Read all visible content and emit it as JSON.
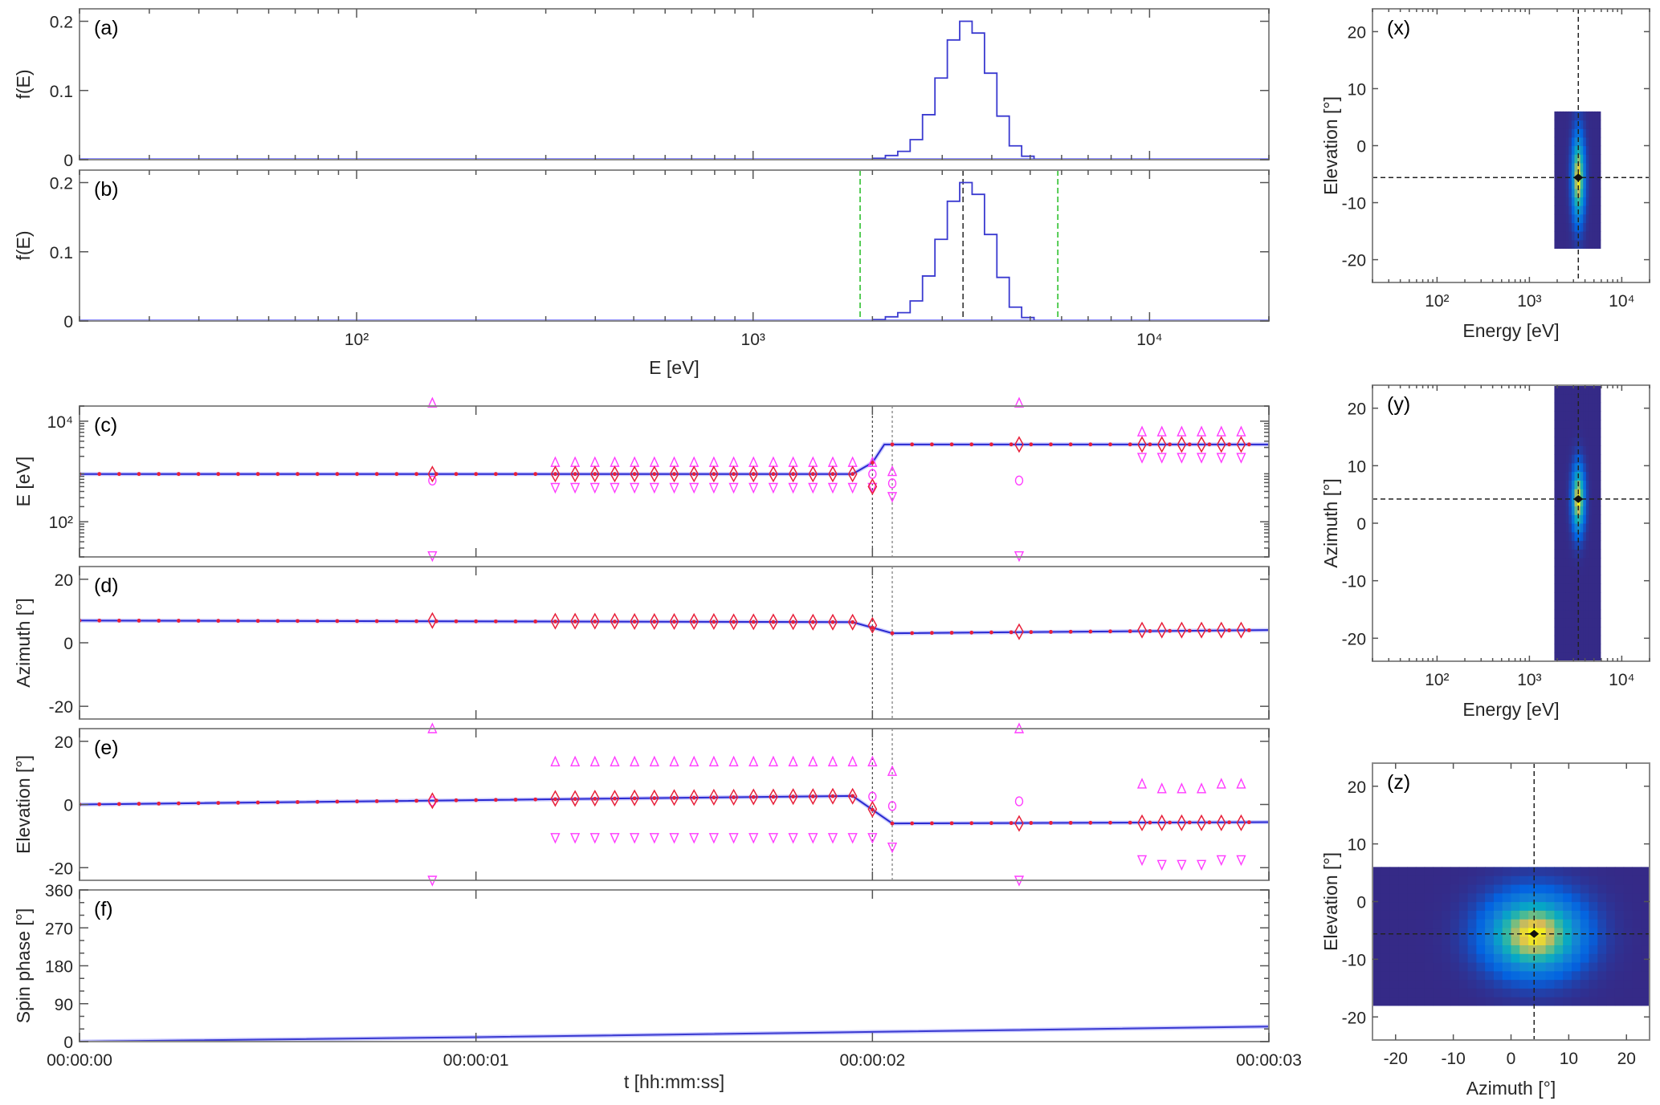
{
  "chart_data": [
    {
      "type": "line",
      "panel_label": "(a)",
      "ylabel": "f(E)",
      "xlabel": "",
      "xscale": "log",
      "xlim": [
        20,
        20000
      ],
      "ylim": [
        0,
        0.218
      ],
      "xticks": [
        100,
        1000,
        10000
      ],
      "xticklabels": [],
      "yticks": [
        0,
        0.1,
        0.2
      ],
      "yticklabels": [
        "0",
        "0.1",
        "0.2"
      ],
      "histogram": {
        "bin_centers_eV": [
          2080,
          2235,
          2402,
          2581,
          2774,
          2981,
          3203,
          3442,
          3699,
          3975,
          4271,
          4590,
          4932
        ],
        "values": [
          0.002,
          0.006,
          0.012,
          0.029,
          0.065,
          0.118,
          0.173,
          0.2,
          0.183,
          0.125,
          0.063,
          0.02,
          0.005
        ],
        "color": "#3a3ad0"
      }
    },
    {
      "type": "line",
      "panel_label": "(b)",
      "ylabel": "f(E)",
      "xlabel": "E [eV]",
      "xscale": "log",
      "xlim": [
        20,
        20000
      ],
      "ylim": [
        0,
        0.218
      ],
      "xticks": [
        100,
        1000,
        10000
      ],
      "xticklabels": [
        "10²",
        "10³",
        "10⁴"
      ],
      "yticks": [
        0,
        0.1,
        0.2
      ],
      "yticklabels": [
        "0",
        "0.1",
        "0.2"
      ],
      "histogram": {
        "bin_centers_eV": [
          2080,
          2235,
          2402,
          2581,
          2774,
          2981,
          3203,
          3442,
          3699,
          3975,
          4271,
          4590,
          4932
        ],
        "values": [
          0.002,
          0.006,
          0.012,
          0.029,
          0.065,
          0.118,
          0.173,
          0.2,
          0.183,
          0.125,
          0.063,
          0.02,
          0.005
        ],
        "color": "#3a3ad0"
      },
      "vlines": [
        {
          "x": 1862,
          "color": "#2ec02e"
        },
        {
          "x": 5870,
          "color": "#2ec02e"
        },
        {
          "x": 3385,
          "color": "#333333"
        }
      ]
    },
    {
      "type": "scatter",
      "panel_label": "(c)",
      "ylabel": "E [eV]",
      "xlabel": "",
      "xlim": [
        0,
        3
      ],
      "yscale": "log",
      "ylim": [
        20,
        20000
      ],
      "xticks": [
        0,
        1,
        2,
        3
      ],
      "xticklabels": [],
      "yticks": [
        100,
        10000
      ],
      "yticklabels": [
        "10²",
        "10⁴"
      ],
      "vlines_t": [
        2.0,
        2.05
      ],
      "line": {
        "t": [
          0,
          1.95,
          2.0,
          2.03,
          3
        ],
        "v": [
          890,
          890,
          1500,
          3450,
          3450
        ],
        "color": "#2a2ad0",
        "dot_color": "#e8203a",
        "dot_interval_s": 0.05
      },
      "markers": [
        {
          "shape": "triangle-up",
          "color": "#ff3cff",
          "t": [
            0.89,
            1.2,
            1.25,
            1.3,
            1.35,
            1.4,
            1.45,
            1.5,
            1.55,
            1.6,
            1.65,
            1.7,
            1.75,
            1.8,
            1.85,
            1.9,
            1.95,
            2.0,
            2.05,
            2.37,
            2.68,
            2.73,
            2.78,
            2.83,
            2.88,
            2.93
          ],
          "v": [
            23000,
            1520,
            1520,
            1520,
            1520,
            1520,
            1520,
            1520,
            1520,
            1520,
            1520,
            1520,
            1520,
            1520,
            1520,
            1520,
            1520,
            1520,
            1000,
            23000,
            6150,
            6150,
            6150,
            6150,
            6150,
            6150
          ]
        },
        {
          "shape": "triangle-down",
          "color": "#ff3cff",
          "t": [
            0.89,
            1.2,
            1.25,
            1.3,
            1.35,
            1.4,
            1.45,
            1.5,
            1.55,
            1.6,
            1.65,
            1.7,
            1.75,
            1.8,
            1.85,
            1.9,
            1.95,
            2.0,
            2.05,
            2.37,
            2.68,
            2.73,
            2.78,
            2.83,
            2.88,
            2.93
          ],
          "v": [
            21,
            480,
            480,
            480,
            480,
            480,
            480,
            480,
            480,
            480,
            480,
            480,
            480,
            480,
            480,
            480,
            480,
            480,
            316,
            21,
            1900,
            1900,
            1900,
            1900,
            1900,
            1900
          ]
        },
        {
          "shape": "circle",
          "color": "#ff3cff",
          "t": [
            0.89,
            2.0,
            2.05,
            2.37
          ],
          "v": [
            660,
            890,
            580,
            660
          ]
        },
        {
          "shape": "diamond",
          "color": "#e8203a",
          "t": [
            0.89,
            1.2,
            1.25,
            1.3,
            1.35,
            1.4,
            1.45,
            1.5,
            1.55,
            1.6,
            1.65,
            1.7,
            1.75,
            1.8,
            1.85,
            1.9,
            1.95,
            2.0,
            2.37,
            2.68,
            2.73,
            2.78,
            2.83,
            2.88,
            2.93
          ],
          "v": [
            890,
            890,
            890,
            890,
            890,
            890,
            890,
            890,
            890,
            890,
            890,
            890,
            890,
            890,
            890,
            890,
            890,
            500,
            3450,
            3450,
            3450,
            3450,
            3450,
            3450,
            3450
          ]
        }
      ]
    },
    {
      "type": "scatter",
      "panel_label": "(d)",
      "ylabel": "Azimuth [°]",
      "xlabel": "",
      "xlim": [
        0,
        3
      ],
      "ylim": [
        -24,
        24
      ],
      "xticks": [
        0,
        1,
        2,
        3
      ],
      "xticklabels": [],
      "yticks": [
        -20,
        0,
        20
      ],
      "yticklabels": [
        "-20",
        "0",
        "20"
      ],
      "vlines_t": [
        2.0,
        2.05
      ],
      "line": {
        "t": [
          0,
          1.95,
          2.05,
          3
        ],
        "v": [
          7,
          6.5,
          3,
          4
        ],
        "color": "#2a2ad0",
        "dot_color": "#e8203a",
        "dot_interval_s": 0.05
      },
      "markers": [
        {
          "shape": "diamond",
          "color": "#e8203a",
          "t": [
            0.89,
            1.2,
            1.25,
            1.3,
            1.35,
            1.4,
            1.45,
            1.5,
            1.55,
            1.6,
            1.65,
            1.7,
            1.75,
            1.8,
            1.85,
            1.9,
            1.95,
            2.0,
            2.37,
            2.68,
            2.73,
            2.78,
            2.83,
            2.88,
            2.93
          ],
          "v": [
            7,
            6.8,
            6.8,
            6.8,
            6.8,
            6.7,
            6.7,
            6.7,
            6.7,
            6.7,
            6.6,
            6.6,
            6.6,
            6.6,
            6.5,
            6.5,
            6.5,
            5.5,
            3.5,
            4,
            4,
            4,
            4,
            4,
            4
          ]
        }
      ]
    },
    {
      "type": "scatter",
      "panel_label": "(e)",
      "ylabel": "Elevation [°]",
      "xlabel": "",
      "xlim": [
        0,
        3
      ],
      "ylim": [
        -24,
        24
      ],
      "xticks": [
        0,
        1,
        2,
        3
      ],
      "xticklabels": [],
      "yticks": [
        -20,
        0,
        20
      ],
      "yticklabels": [
        "-20",
        "0",
        "20"
      ],
      "vlines_t": [
        2.0,
        2.05
      ],
      "line": {
        "t": [
          0,
          1.95,
          2.05,
          3
        ],
        "v": [
          0,
          2.7,
          -6,
          -5.6
        ],
        "color": "#2a2ad0",
        "dot_color": "#e8203a",
        "dot_interval_s": 0.05
      },
      "markers": [
        {
          "shape": "triangle-up",
          "color": "#ff3cff",
          "t": [
            0.89,
            1.2,
            1.25,
            1.3,
            1.35,
            1.4,
            1.45,
            1.5,
            1.55,
            1.6,
            1.65,
            1.7,
            1.75,
            1.8,
            1.85,
            1.9,
            1.95,
            2.0,
            2.05,
            2.37,
            2.68,
            2.73,
            2.78,
            2.83,
            2.88,
            2.93
          ],
          "v": [
            24,
            13.5,
            13.5,
            13.5,
            13.5,
            13.5,
            13.5,
            13.5,
            13.5,
            13.5,
            13.5,
            13.5,
            13.5,
            13.5,
            13.5,
            13.5,
            13.5,
            13.5,
            10.5,
            24,
            6.5,
            5,
            5,
            5,
            6.5,
            6.5
          ]
        },
        {
          "shape": "triangle-down",
          "color": "#ff3cff",
          "t": [
            0.89,
            1.2,
            1.25,
            1.3,
            1.35,
            1.4,
            1.45,
            1.5,
            1.55,
            1.6,
            1.65,
            1.7,
            1.75,
            1.8,
            1.85,
            1.9,
            1.95,
            2.0,
            2.05,
            2.37,
            2.68,
            2.73,
            2.78,
            2.83,
            2.88,
            2.93
          ],
          "v": [
            -24,
            -10.5,
            -10.5,
            -10.5,
            -10.5,
            -10.5,
            -10.5,
            -10.5,
            -10.5,
            -10.5,
            -10.5,
            -10.5,
            -10.5,
            -10.5,
            -10.5,
            -10.5,
            -10.5,
            -10.5,
            -13.5,
            -24,
            -17.5,
            -19,
            -19,
            -19,
            -17.5,
            -17.5
          ]
        },
        {
          "shape": "circle",
          "color": "#ff3cff",
          "t": [
            0.89,
            2.0,
            2.05,
            2.37
          ],
          "v": [
            1,
            2.5,
            -0.5,
            1
          ]
        },
        {
          "shape": "diamond",
          "color": "#e8203a",
          "t": [
            0.89,
            1.2,
            1.25,
            1.3,
            1.35,
            1.4,
            1.45,
            1.5,
            1.55,
            1.6,
            1.65,
            1.7,
            1.75,
            1.8,
            1.85,
            1.9,
            1.95,
            2.0,
            2.37,
            2.68,
            2.73,
            2.78,
            2.83,
            2.88,
            2.93
          ],
          "v": [
            1.2,
            1.9,
            1.9,
            2.0,
            2.0,
            2.1,
            2.1,
            2.2,
            2.2,
            2.3,
            2.3,
            2.4,
            2.4,
            2.5,
            2.5,
            2.6,
            2.6,
            -1.5,
            -6,
            -5.8,
            -5.8,
            -5.8,
            -5.8,
            -5.8,
            -5.8
          ]
        }
      ]
    },
    {
      "type": "line",
      "panel_label": "(f)",
      "ylabel": "Spin phase [°]",
      "xlabel": "t [hh:mm:ss]",
      "xlim": [
        0,
        3
      ],
      "ylim": [
        0,
        360
      ],
      "xticks": [
        0,
        1,
        2,
        3
      ],
      "xticklabels": [
        "00:00:00",
        "00:00:01",
        "00:00:02",
        "00:00:03"
      ],
      "yticks": [
        0,
        90,
        180,
        270,
        360
      ],
      "yticklabels": [
        "0",
        "90",
        "180",
        "270",
        "360"
      ],
      "line": {
        "t": [
          0,
          1,
          2,
          3
        ],
        "v": [
          0,
          10.5,
          23,
          35.6
        ],
        "color": "#3a3ad0"
      }
    },
    {
      "type": "heatmap",
      "panel_label": "(x)",
      "ylabel": "Elevation [°]",
      "xlabel": "Energy [eV]",
      "xscale": "log",
      "xlim": [
        20,
        20000
      ],
      "ylim": [
        -24,
        24
      ],
      "xticks": [
        100,
        1000,
        10000
      ],
      "xticklabels": [
        "10²",
        "10³",
        "10⁴"
      ],
      "yticks": [
        -20,
        -10,
        0,
        10,
        20
      ],
      "yticklabels": [
        "-20",
        "-10",
        "0",
        "10",
        "20"
      ],
      "extent": {
        "x": [
          1862,
          5870
        ],
        "y": [
          -18,
          6
        ]
      },
      "peak": {
        "x": 3385,
        "y": -5.6
      },
      "spread": {
        "x_decades": 0.045,
        "y": 5
      },
      "crosshair": {
        "x": 3385,
        "y": -5.6
      }
    },
    {
      "type": "heatmap",
      "panel_label": "(y)",
      "ylabel": "Azimuth [°]",
      "xlabel": "Energy [eV]",
      "xscale": "log",
      "xlim": [
        20,
        20000
      ],
      "ylim": [
        -24,
        24
      ],
      "xticks": [
        100,
        1000,
        10000
      ],
      "xticklabels": [
        "10²",
        "10³",
        "10⁴"
      ],
      "yticks": [
        -20,
        -10,
        0,
        10,
        20
      ],
      "yticklabels": [
        "-20",
        "-10",
        "0",
        "10",
        "20"
      ],
      "extent": {
        "x": [
          1862,
          5870
        ],
        "y": [
          -24,
          24
        ]
      },
      "peak": {
        "x": 3385,
        "y": 4.2
      },
      "spread": {
        "x_decades": 0.045,
        "y": 3.8
      },
      "crosshair": {
        "x": 3385,
        "y": 4.2
      }
    },
    {
      "type": "heatmap",
      "panel_label": "(z)",
      "ylabel": "Elevation [°]",
      "xlabel": "Azimuth [°]",
      "xlim": [
        -24,
        24
      ],
      "ylim": [
        -24,
        24
      ],
      "xticks": [
        -20,
        -10,
        0,
        10,
        20
      ],
      "xticklabels": [
        "-20",
        "-10",
        "0",
        "10",
        "20"
      ],
      "yticks": [
        -20,
        -10,
        0,
        10,
        20
      ],
      "yticklabels": [
        "-20",
        "-10",
        "0",
        "10",
        "20"
      ],
      "extent": {
        "x": [
          -24,
          24
        ],
        "y": [
          -18,
          6
        ]
      },
      "peak": {
        "x": 4,
        "y": -5.6
      },
      "spread": {
        "x": 5.5,
        "y": 4.5
      },
      "crosshair": {
        "x": 4,
        "y": -5.6
      }
    }
  ]
}
